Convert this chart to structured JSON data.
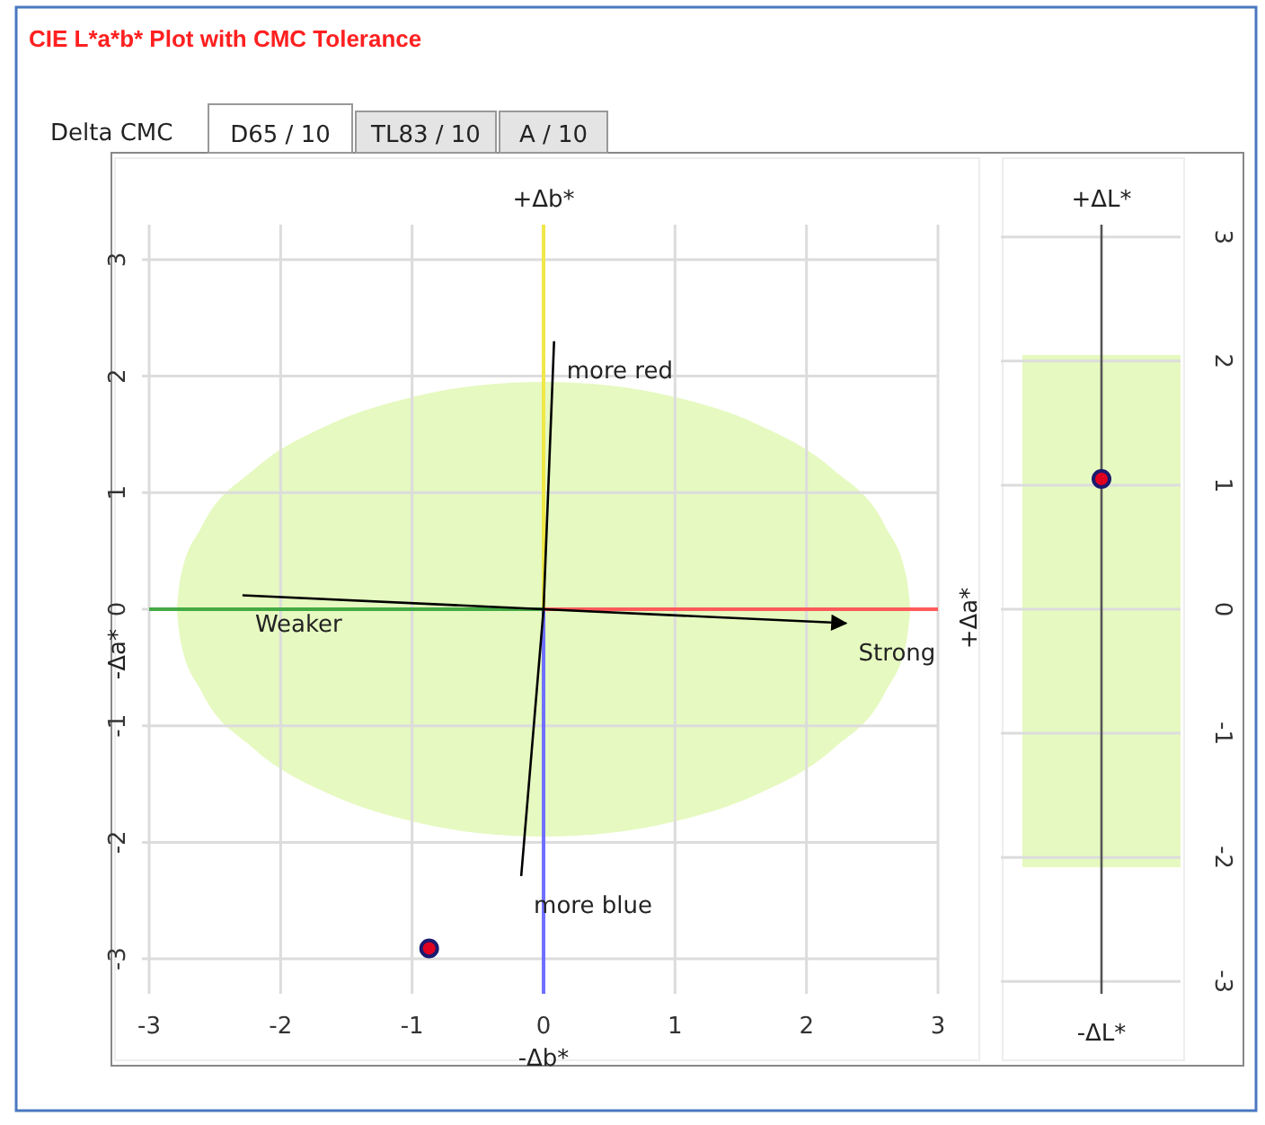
{
  "chart_data": [
    {
      "type": "scatter",
      "title": "CIE L*a*b* Plot with CMC Tolerance",
      "xlabel": "-Δb*",
      "x2label": "+Δb*",
      "ylabel": "-Δa*",
      "y2label": "+Δa*",
      "annotations": [
        "Delta CMC",
        "D65 / 10",
        "TL83 / 10",
        "A / 10",
        {
          "text": "more red",
          "x": 0.08,
          "y": 2.3
        },
        {
          "text": "Weaker",
          "x": -2.29,
          "y": 0.12
        },
        {
          "text": "Strong",
          "x": 2.3,
          "y": -0.12
        },
        {
          "text": "more blue",
          "x": -0.17,
          "y": -2.29
        }
      ],
      "xlim": [
        -3,
        3
      ],
      "ylim": [
        -3.3,
        3.3
      ],
      "xticks": [
        -3,
        -2,
        -1,
        0,
        1,
        2,
        3
      ],
      "yticks": [
        -3,
        -2,
        -1,
        0,
        1,
        2,
        3
      ],
      "grid": true,
      "series": [
        {
          "type": "area",
          "color": "#e6f9c0",
          "x": [
            -2.79,
            -2.76,
            -2.6,
            -2.2,
            -1.6,
            -1,
            -0.5,
            0,
            0.5,
            1,
            1.6,
            2.2,
            2.6,
            2.76,
            2.79
          ],
          "values": [
            0,
            0.28,
            0.71,
            1.2,
            1.6,
            1.82,
            1.92,
            1.95,
            1.92,
            1.82,
            1.6,
            1.2,
            0.71,
            0.28,
            0
          ]
        },
        {
          "type": "area",
          "color": "#e6f9c0",
          "x": [
            -2.79,
            -2.76,
            -2.6,
            -2.2,
            -1.6,
            -1,
            -0.5,
            0,
            0.5,
            1,
            1.6,
            2.2,
            2.6,
            2.76,
            2.79
          ],
          "values": [
            0,
            -0.28,
            -0.71,
            -1.2,
            -1.6,
            -1.82,
            -1.92,
            -1.95,
            -1.92,
            -1.82,
            -1.6,
            -1.2,
            -0.71,
            -0.28,
            0
          ]
        },
        {
          "type": "line",
          "color": "#f0e848",
          "x": [
            0,
            0
          ],
          "values": [
            0,
            3.3
          ]
        },
        {
          "type": "line",
          "color": "#7070ff",
          "x": [
            0,
            0
          ],
          "values": [
            0,
            -3.3
          ]
        },
        {
          "type": "line",
          "color": "#44aa44",
          "x": [
            -3,
            0
          ],
          "values": [
            0,
            0
          ]
        },
        {
          "type": "line",
          "color": "#ff5a5a",
          "x": [
            0,
            3
          ],
          "values": [
            0,
            0
          ]
        },
        {
          "type": "line",
          "color": "#000000",
          "x": [
            -0.17,
            0,
            0.08
          ],
          "values": [
            -2.29,
            0,
            2.3
          ]
        },
        {
          "type": "line",
          "color": "#000000",
          "x": [
            -2.29,
            0,
            2.3
          ],
          "values": [
            0.12,
            0,
            -0.12
          ]
        },
        {
          "type": "scatter",
          "color": "#e00020",
          "x": [
            -0.87
          ],
          "values": [
            -2.91
          ],
          "marker": "circle"
        }
      ]
    },
    {
      "type": "scatter",
      "xlabel": "-ΔL*",
      "x2label": "+ΔL*",
      "categories": [
        null
      ],
      "values": [
        1.05
      ],
      "color": "#e00020",
      "marker": "circle",
      "ylim": [
        -3.1,
        3.1
      ],
      "yticks": [
        -3,
        -2,
        -1,
        0,
        1,
        2,
        3
      ],
      "grid": "y",
      "tick_labels": "y",
      "bands": [
        {
          "axis": "y",
          "from": -2.08,
          "to": 2.05,
          "color": "#e6f9c0"
        }
      ]
    }
  ]
}
